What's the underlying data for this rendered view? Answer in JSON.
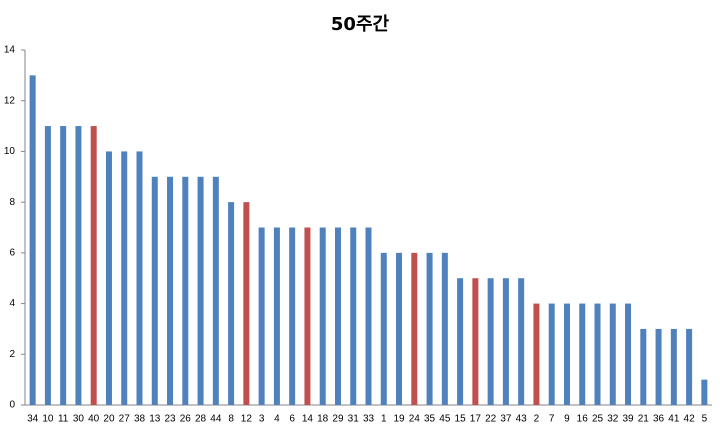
{
  "chart_data": {
    "type": "bar",
    "title": "50주간",
    "categories": [
      "34",
      "10",
      "11",
      "30",
      "40",
      "20",
      "27",
      "38",
      "13",
      "23",
      "26",
      "28",
      "44",
      "8",
      "12",
      "3",
      "4",
      "6",
      "14",
      "18",
      "29",
      "31",
      "33",
      "1",
      "19",
      "24",
      "35",
      "45",
      "15",
      "17",
      "22",
      "37",
      "43",
      "2",
      "7",
      "9",
      "16",
      "25",
      "32",
      "39",
      "21",
      "36",
      "41",
      "42",
      "5"
    ],
    "values": [
      13,
      11,
      11,
      11,
      11,
      10,
      10,
      10,
      9,
      9,
      9,
      9,
      9,
      8,
      8,
      7,
      7,
      7,
      7,
      7,
      7,
      7,
      7,
      6,
      6,
      6,
      6,
      6,
      5,
      5,
      5,
      5,
      5,
      4,
      4,
      4,
      4,
      4,
      4,
      4,
      3,
      3,
      3,
      3,
      1
    ],
    "colors": [
      "#4f81bd",
      "#4f81bd",
      "#4f81bd",
      "#4f81bd",
      "#c0504d",
      "#4f81bd",
      "#4f81bd",
      "#4f81bd",
      "#4f81bd",
      "#4f81bd",
      "#4f81bd",
      "#4f81bd",
      "#4f81bd",
      "#4f81bd",
      "#c0504d",
      "#4f81bd",
      "#4f81bd",
      "#4f81bd",
      "#c0504d",
      "#4f81bd",
      "#4f81bd",
      "#4f81bd",
      "#4f81bd",
      "#4f81bd",
      "#4f81bd",
      "#c0504d",
      "#4f81bd",
      "#4f81bd",
      "#4f81bd",
      "#c0504d",
      "#4f81bd",
      "#4f81bd",
      "#4f81bd",
      "#c0504d",
      "#4f81bd",
      "#4f81bd",
      "#4f81bd",
      "#4f81bd",
      "#4f81bd",
      "#4f81bd",
      "#4f81bd",
      "#4f81bd",
      "#4f81bd",
      "#4f81bd",
      "#4f81bd"
    ],
    "ylim": [
      0,
      14
    ],
    "yticks": [
      0,
      2,
      4,
      6,
      8,
      10,
      12,
      14
    ],
    "grid": false
  }
}
